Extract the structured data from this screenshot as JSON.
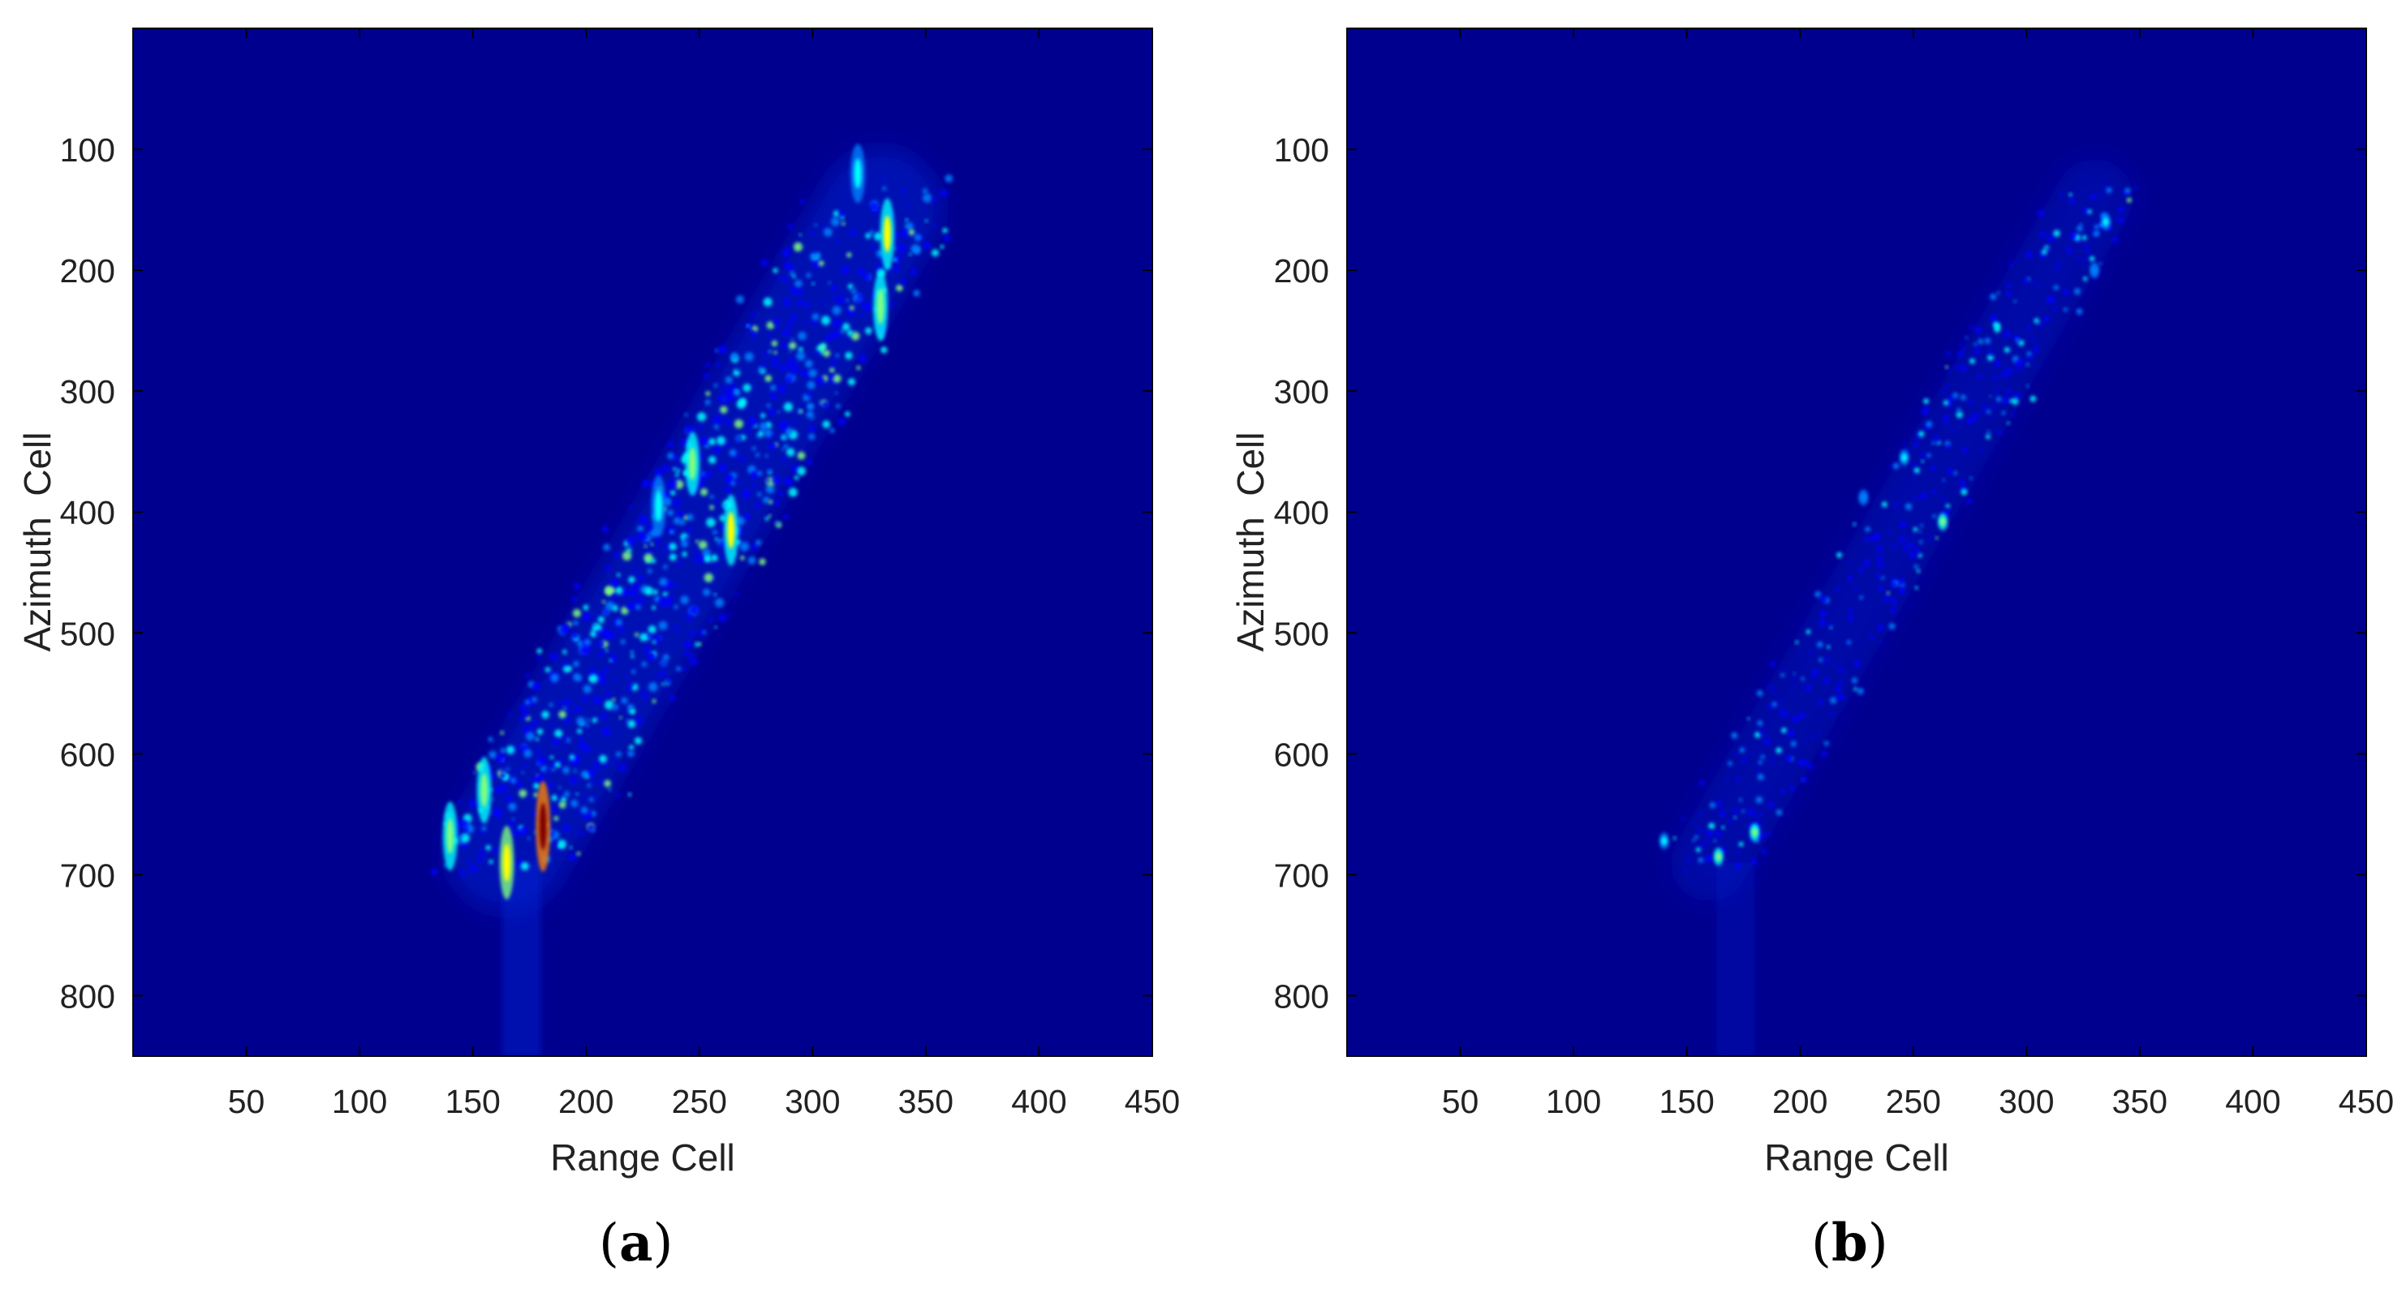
{
  "colors": {
    "background_colormap_low": "#00008f",
    "colormap": [
      "#00008f",
      "#0000ff",
      "#0080ff",
      "#00ffff",
      "#80ff80",
      "#ffff00",
      "#ff8000",
      "#ff0000",
      "#800000"
    ],
    "axis": "#000000",
    "text": "#222222"
  },
  "chart_data": [
    {
      "type": "heatmap",
      "panel_label": "a",
      "xlabel": "Range Cell",
      "ylabel": "Azimuth  Cell",
      "xlim": [
        0,
        450
      ],
      "ylim": [
        850,
        0
      ],
      "x_ticks": [
        50,
        100,
        150,
        200,
        250,
        300,
        350,
        400,
        450
      ],
      "y_ticks": [
        100,
        200,
        300,
        400,
        500,
        600,
        700,
        800
      ],
      "colormap": "jet",
      "description_points": {
        "target_axis": [
          [
            330,
            150
          ],
          [
            165,
            680
          ]
        ],
        "hot_spots": [
          {
            "x": 181,
            "y": 660,
            "intensity": 1.0
          },
          {
            "x": 165,
            "y": 690,
            "intensity": 0.65
          },
          {
            "x": 140,
            "y": 668,
            "intensity": 0.55
          },
          {
            "x": 155,
            "y": 630,
            "intensity": 0.5
          },
          {
            "x": 264,
            "y": 415,
            "intensity": 0.6
          },
          {
            "x": 247,
            "y": 360,
            "intensity": 0.45
          },
          {
            "x": 232,
            "y": 395,
            "intensity": 0.4
          },
          {
            "x": 330,
            "y": 230,
            "intensity": 0.55
          },
          {
            "x": 333,
            "y": 170,
            "intensity": 0.6
          },
          {
            "x": 320,
            "y": 120,
            "intensity": 0.35
          }
        ]
      }
    },
    {
      "type": "heatmap",
      "panel_label": "b",
      "xlabel": "Range Cell",
      "ylabel": "Azimuth  Cell",
      "xlim": [
        0,
        450
      ],
      "ylim": [
        850,
        0
      ],
      "x_ticks": [
        50,
        100,
        150,
        200,
        250,
        300,
        350,
        400,
        450
      ],
      "y_ticks": [
        100,
        200,
        300,
        400,
        500,
        600,
        700,
        800
      ],
      "colormap": "jet",
      "description_points": {
        "target_axis": [
          [
            330,
            140
          ],
          [
            160,
            690
          ]
        ],
        "hot_spots": [
          {
            "x": 180,
            "y": 665,
            "intensity": 0.55
          },
          {
            "x": 164,
            "y": 685,
            "intensity": 0.5
          },
          {
            "x": 140,
            "y": 672,
            "intensity": 0.4
          },
          {
            "x": 263,
            "y": 408,
            "intensity": 0.45
          },
          {
            "x": 246,
            "y": 355,
            "intensity": 0.35
          },
          {
            "x": 228,
            "y": 388,
            "intensity": 0.3
          },
          {
            "x": 335,
            "y": 160,
            "intensity": 0.4
          },
          {
            "x": 330,
            "y": 200,
            "intensity": 0.3
          }
        ]
      }
    }
  ]
}
